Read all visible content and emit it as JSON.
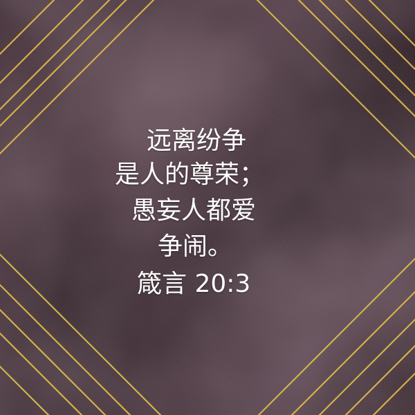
{
  "verse": {
    "lines": [
      "远离纷争",
      "是人的尊荣；",
      "愚妄人都爱",
      "争闹。"
    ],
    "reference": "箴言 20:3"
  },
  "colors": {
    "background": "#3a2830",
    "gold_lines": "#d4b24c",
    "text": "#ffffff"
  }
}
